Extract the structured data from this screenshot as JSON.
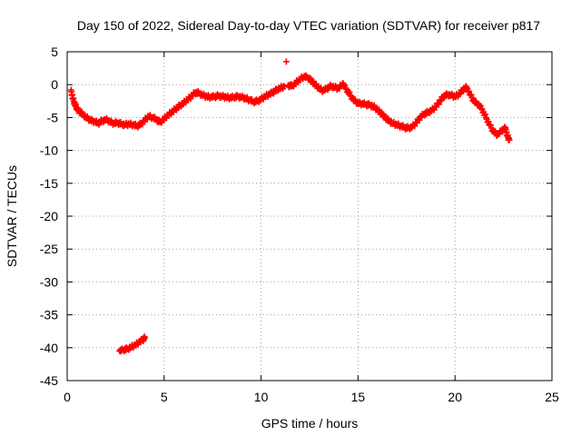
{
  "chart_data": {
    "type": "scatter",
    "title": "Day 150 of 2022, Sidereal Day-to-day VTEC variation (SDTVAR) for receiver p817",
    "xlabel": "GPS time / hours",
    "ylabel": "SDTVAR / TECUs",
    "xlim": [
      0,
      25
    ],
    "ylim": [
      -45,
      5
    ],
    "xticks": [
      0,
      5,
      10,
      15,
      20,
      25
    ],
    "yticks": [
      5,
      0,
      -5,
      -10,
      -15,
      -20,
      -25,
      -30,
      -35,
      -40,
      -45
    ],
    "xtick_labels": [
      "0",
      "5",
      "10",
      "15",
      "20",
      "25"
    ],
    "ytick_labels": [
      "5",
      "0",
      "-5",
      "-10",
      "-15",
      "-20",
      "-25",
      "-30",
      "-35",
      "-40",
      "-45"
    ],
    "grid": true,
    "marker": "+",
    "series": [
      {
        "name": "SDTVAR",
        "color": "#ff0000",
        "points": [
          [
            0.2,
            -0.8
          ],
          [
            0.3,
            -2.2
          ],
          [
            0.4,
            -3.0
          ],
          [
            0.5,
            -3.6
          ],
          [
            0.6,
            -4.0
          ],
          [
            0.8,
            -4.5
          ],
          [
            1.0,
            -5.0
          ],
          [
            1.2,
            -5.4
          ],
          [
            1.4,
            -5.6
          ],
          [
            1.6,
            -5.9
          ],
          [
            1.8,
            -5.5
          ],
          [
            2.0,
            -5.3
          ],
          [
            2.2,
            -5.6
          ],
          [
            2.4,
            -5.9
          ],
          [
            2.6,
            -5.8
          ],
          [
            2.8,
            -6.0
          ],
          [
            3.0,
            -6.1
          ],
          [
            3.2,
            -6.0
          ],
          [
            3.4,
            -6.1
          ],
          [
            3.6,
            -6.3
          ],
          [
            3.8,
            -6.0
          ],
          [
            4.0,
            -5.4
          ],
          [
            4.2,
            -4.8
          ],
          [
            4.4,
            -5.0
          ],
          [
            4.6,
            -5.3
          ],
          [
            4.8,
            -5.7
          ],
          [
            5.0,
            -5.2
          ],
          [
            5.2,
            -4.6
          ],
          [
            5.4,
            -4.2
          ],
          [
            5.6,
            -3.7
          ],
          [
            5.8,
            -3.2
          ],
          [
            6.0,
            -2.8
          ],
          [
            6.2,
            -2.3
          ],
          [
            6.4,
            -1.8
          ],
          [
            6.6,
            -1.2
          ],
          [
            6.8,
            -1.3
          ],
          [
            7.0,
            -1.6
          ],
          [
            7.2,
            -1.8
          ],
          [
            7.4,
            -1.9
          ],
          [
            7.6,
            -1.8
          ],
          [
            7.8,
            -1.7
          ],
          [
            8.0,
            -1.8
          ],
          [
            8.2,
            -1.9
          ],
          [
            8.4,
            -2.0
          ],
          [
            8.6,
            -1.9
          ],
          [
            8.8,
            -1.8
          ],
          [
            9.0,
            -1.9
          ],
          [
            9.2,
            -2.1
          ],
          [
            9.4,
            -2.3
          ],
          [
            9.6,
            -2.6
          ],
          [
            9.8,
            -2.5
          ],
          [
            10.0,
            -2.2
          ],
          [
            10.2,
            -1.8
          ],
          [
            10.4,
            -1.5
          ],
          [
            10.6,
            -1.2
          ],
          [
            10.8,
            -0.8
          ],
          [
            11.0,
            -0.5
          ],
          [
            11.2,
            -0.3
          ],
          [
            11.3,
            3.5
          ],
          [
            11.4,
            -0.1
          ],
          [
            11.6,
            -0.2
          ],
          [
            11.8,
            0.3
          ],
          [
            12.0,
            0.8
          ],
          [
            12.2,
            1.2
          ],
          [
            12.4,
            1.1
          ],
          [
            12.6,
            0.6
          ],
          [
            12.8,
            0.0
          ],
          [
            13.0,
            -0.6
          ],
          [
            13.2,
            -0.9
          ],
          [
            13.4,
            -0.6
          ],
          [
            13.6,
            -0.2
          ],
          [
            13.8,
            -0.4
          ],
          [
            14.0,
            -0.6
          ],
          [
            14.2,
            0.2
          ],
          [
            14.4,
            -0.7
          ],
          [
            14.6,
            -1.6
          ],
          [
            14.8,
            -2.4
          ],
          [
            15.0,
            -2.8
          ],
          [
            15.2,
            -2.9
          ],
          [
            15.4,
            -3.0
          ],
          [
            15.6,
            -3.1
          ],
          [
            15.8,
            -3.3
          ],
          [
            16.0,
            -3.8
          ],
          [
            16.2,
            -4.4
          ],
          [
            16.4,
            -5.0
          ],
          [
            16.6,
            -5.5
          ],
          [
            16.8,
            -5.9
          ],
          [
            17.0,
            -6.1
          ],
          [
            17.2,
            -6.3
          ],
          [
            17.4,
            -6.5
          ],
          [
            17.6,
            -6.6
          ],
          [
            17.8,
            -6.4
          ],
          [
            18.0,
            -5.8
          ],
          [
            18.2,
            -5.0
          ],
          [
            18.4,
            -4.5
          ],
          [
            18.6,
            -4.2
          ],
          [
            18.8,
            -3.9
          ],
          [
            19.0,
            -3.4
          ],
          [
            19.2,
            -2.6
          ],
          [
            19.4,
            -1.8
          ],
          [
            19.6,
            -1.5
          ],
          [
            19.8,
            -1.6
          ],
          [
            20.0,
            -1.8
          ],
          [
            20.2,
            -1.5
          ],
          [
            20.4,
            -0.8
          ],
          [
            20.6,
            -0.4
          ],
          [
            20.8,
            -1.6
          ],
          [
            21.0,
            -2.6
          ],
          [
            21.2,
            -3.0
          ],
          [
            21.4,
            -3.8
          ],
          [
            21.6,
            -5.0
          ],
          [
            21.8,
            -6.2
          ],
          [
            22.0,
            -7.2
          ],
          [
            22.2,
            -7.6
          ],
          [
            22.4,
            -7.0
          ],
          [
            22.6,
            -6.6
          ],
          [
            22.7,
            -7.8
          ],
          [
            22.8,
            -8.4
          ],
          [
            2.7,
            -40.5
          ],
          [
            2.9,
            -40.3
          ],
          [
            3.1,
            -40.2
          ],
          [
            3.3,
            -39.9
          ],
          [
            3.5,
            -39.6
          ],
          [
            3.7,
            -39.2
          ],
          [
            3.9,
            -38.8
          ],
          [
            4.0,
            -38.5
          ]
        ]
      }
    ]
  }
}
